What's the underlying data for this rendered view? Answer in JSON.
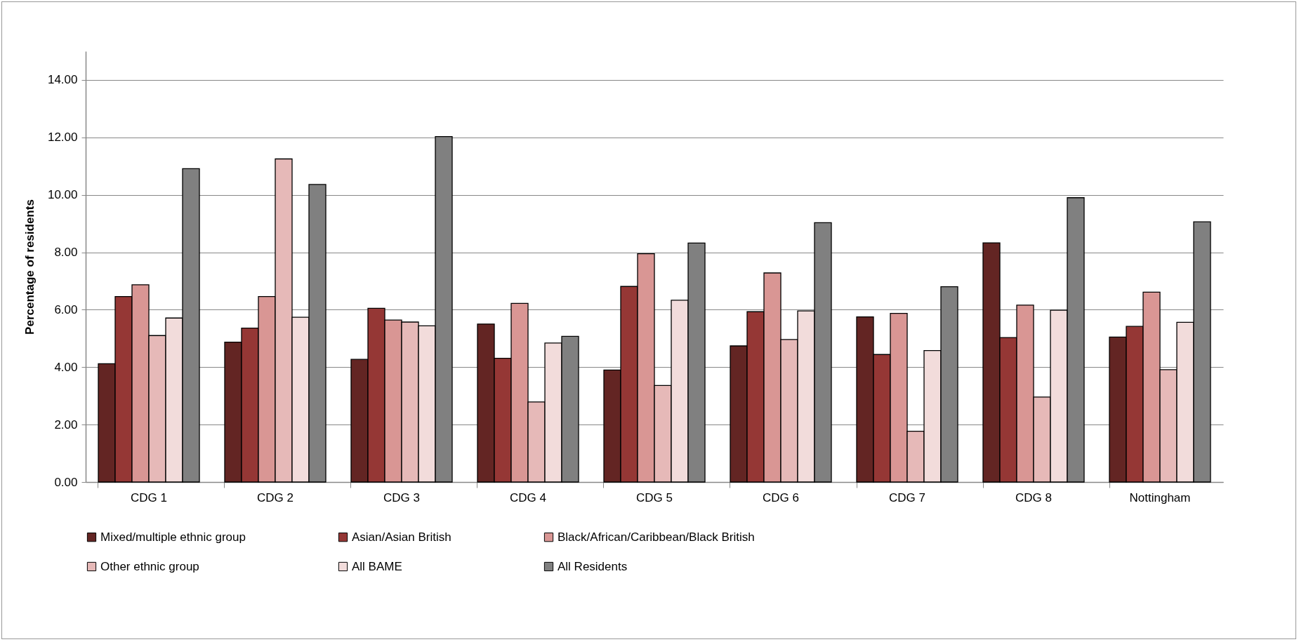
{
  "chart_data": {
    "type": "bar",
    "ylabel": "Percentage of residents",
    "categories": [
      "CDG 1",
      "CDG 2",
      "CDG 3",
      "CDG 4",
      "CDG 5",
      "CDG 6",
      "CDG 7",
      "CDG 8",
      "Nottingham"
    ],
    "series": [
      {
        "name": "Mixed/multiple ethnic group",
        "color": "#632523",
        "values": [
          4.12,
          4.87,
          4.27,
          5.5,
          3.9,
          4.74,
          5.75,
          8.33,
          5.05
        ]
      },
      {
        "name": "Asian/Asian British",
        "color": "#953735",
        "values": [
          6.46,
          5.36,
          6.05,
          4.31,
          6.81,
          5.93,
          4.44,
          5.03,
          5.42
        ]
      },
      {
        "name": "Black/African/Caribbean/Black British",
        "color": "#d99694",
        "values": [
          6.87,
          6.46,
          5.64,
          6.22,
          7.95,
          7.28,
          5.87,
          6.16,
          6.61
        ]
      },
      {
        "name": "Other ethnic group",
        "color": "#e6b9b8",
        "values": [
          5.1,
          11.25,
          5.57,
          2.79,
          3.36,
          4.96,
          1.77,
          2.96,
          3.91
        ]
      },
      {
        "name": "All BAME",
        "color": "#f2dcdb",
        "values": [
          5.71,
          5.74,
          5.44,
          4.84,
          6.33,
          5.96,
          4.58,
          5.98,
          5.56
        ]
      },
      {
        "name": "All Residents",
        "color": "#808080",
        "values": [
          10.91,
          10.36,
          12.03,
          5.07,
          8.32,
          9.03,
          6.8,
          9.9,
          9.06
        ]
      }
    ],
    "ylim": [
      0,
      15
    ],
    "yticks": [
      {
        "value": 0,
        "label": "0.00"
      },
      {
        "value": 2,
        "label": "2.00"
      },
      {
        "value": 4,
        "label": "4.00"
      },
      {
        "value": 6,
        "label": "6.00"
      },
      {
        "value": 8,
        "label": "8.00"
      },
      {
        "value": 10,
        "label": "10.00"
      },
      {
        "value": 12,
        "label": "12.00"
      },
      {
        "value": 14,
        "label": "14.00"
      }
    ],
    "grid": "y",
    "legend": "bottom"
  }
}
